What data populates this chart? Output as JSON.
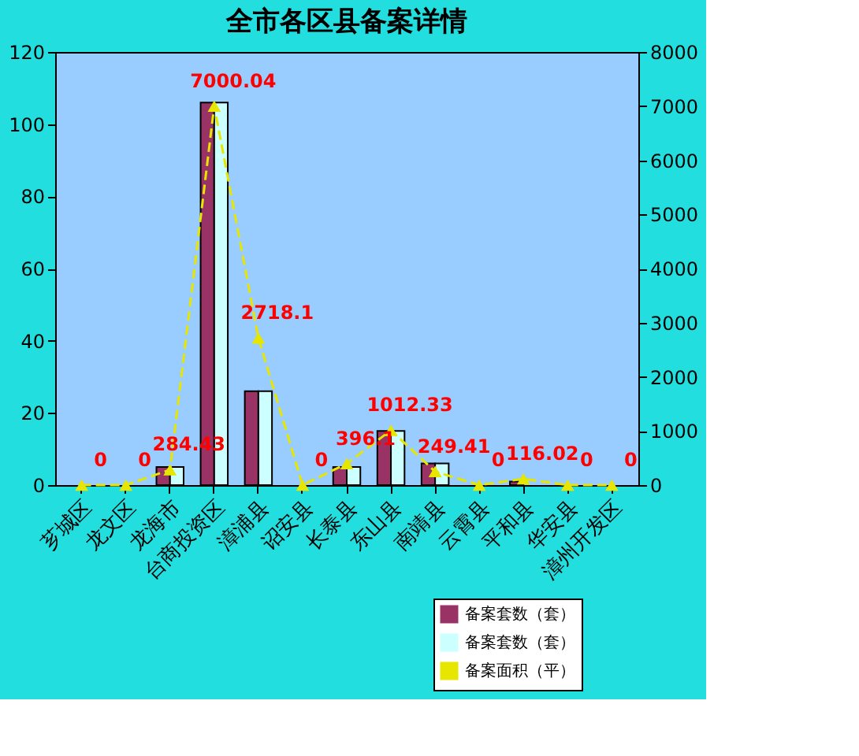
{
  "chart_data": {
    "type": "bar",
    "title": "全市各区县备案详情",
    "categories": [
      "芗城区",
      "龙文区",
      "龙海市",
      "台商投资区",
      "漳浦县",
      "诏安县",
      "长泰县",
      "东山县",
      "南靖县",
      "云霄县",
      "平和县",
      "华安县",
      "漳州开发区"
    ],
    "series": [
      {
        "name": "备案套数（套）",
        "color": "#993366",
        "values": [
          0,
          0,
          5,
          106,
          26,
          0,
          5,
          15,
          6,
          0,
          1,
          0,
          0
        ]
      },
      {
        "name": "备案套数（套）",
        "color": "#ccffff",
        "values": [
          0,
          0,
          5,
          106,
          26,
          0,
          5,
          15,
          6,
          0,
          null,
          0,
          0
        ]
      },
      {
        "name": "备案面积（平）",
        "type": "line",
        "axis": "y2",
        "color": "#e6e600",
        "marker": "triangle",
        "line_style": "dashed",
        "data_labels": true,
        "values": [
          0,
          0,
          284.43,
          7000.04,
          2718.1,
          0,
          396.1,
          1012.33,
          249.41,
          0,
          116.02,
          0,
          0
        ]
      }
    ],
    "ylim": [
      0,
      120
    ],
    "yticks": [
      0,
      20,
      40,
      60,
      80,
      100,
      120
    ],
    "y2lim": [
      0,
      8000
    ],
    "y2ticks": [
      0,
      1000,
      2000,
      3000,
      4000,
      5000,
      6000,
      7000,
      8000
    ],
    "grid": false,
    "legend": "bottom right"
  }
}
